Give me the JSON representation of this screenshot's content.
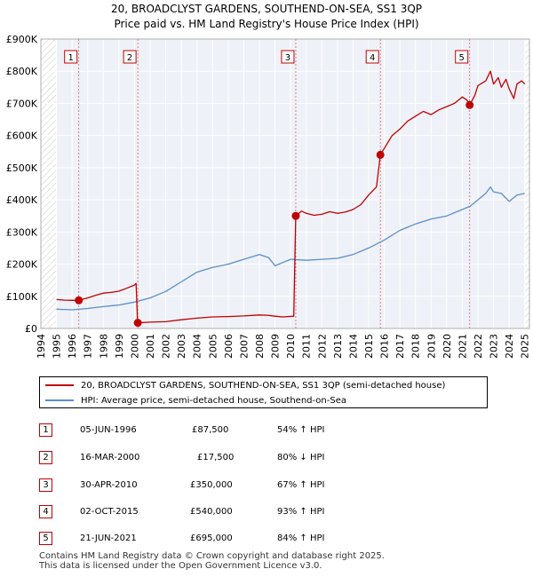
{
  "header": {
    "title_line1": "20, BROADCLYST GARDENS, SOUTHEND-ON-SEA, SS1 3QP",
    "title_line2": "Price paid vs. HM Land Registry's House Price Index (HPI)"
  },
  "chart_data": {
    "type": "line",
    "xlim": [
      1994,
      2025.3
    ],
    "ylim": [
      0,
      900000
    ],
    "x_ticks": [
      1994,
      1995,
      1996,
      1997,
      1998,
      1999,
      2000,
      2001,
      2002,
      2003,
      2004,
      2005,
      2006,
      2007,
      2008,
      2009,
      2010,
      2011,
      2012,
      2013,
      2014,
      2015,
      2016,
      2017,
      2018,
      2019,
      2020,
      2021,
      2022,
      2023,
      2024,
      2025
    ],
    "y_ticks": [
      0,
      100000,
      200000,
      300000,
      400000,
      500000,
      600000,
      700000,
      800000,
      900000
    ],
    "y_tick_labels": [
      "£0",
      "£100K",
      "£200K",
      "£300K",
      "£400K",
      "£500K",
      "£600K",
      "£700K",
      "£800K",
      "£900K"
    ],
    "grid": true,
    "hatched_periods": [
      [
        1994,
        1995
      ],
      [
        2025,
        2025.3
      ]
    ],
    "series": [
      {
        "name": "20, BROADCLYST GARDENS, SOUTHEND-ON-SEA, SS1 3QP (semi-detached house)",
        "color": "#c00000",
        "points": [
          [
            1995,
            90000
          ],
          [
            1995.5,
            88000
          ],
          [
            1996,
            87500
          ],
          [
            1996.43,
            87500
          ],
          [
            1997,
            95000
          ],
          [
            1997.5,
            103000
          ],
          [
            1998,
            110000
          ],
          [
            1998.5,
            112000
          ],
          [
            1999,
            116000
          ],
          [
            1999.5,
            125000
          ],
          [
            2000,
            135000
          ],
          [
            2000.1,
            140000
          ],
          [
            2000.2,
            17500
          ],
          [
            2001,
            19500
          ],
          [
            2002,
            21000
          ],
          [
            2003,
            27000
          ],
          [
            2004,
            32000
          ],
          [
            2005,
            36000
          ],
          [
            2006,
            37000
          ],
          [
            2007,
            39000
          ],
          [
            2008,
            42000
          ],
          [
            2008.5,
            41000
          ],
          [
            2009,
            38000
          ],
          [
            2009.5,
            36000
          ],
          [
            2010.2,
            38000
          ],
          [
            2010.33,
            350000
          ],
          [
            2010.7,
            365000
          ],
          [
            2011,
            358000
          ],
          [
            2011.5,
            352000
          ],
          [
            2012,
            355000
          ],
          [
            2012.5,
            363000
          ],
          [
            2013,
            358000
          ],
          [
            2013.5,
            362000
          ],
          [
            2014,
            370000
          ],
          [
            2014.5,
            385000
          ],
          [
            2015,
            415000
          ],
          [
            2015.5,
            440000
          ],
          [
            2015.75,
            540000
          ],
          [
            2016,
            560000
          ],
          [
            2016.5,
            600000
          ],
          [
            2017,
            620000
          ],
          [
            2017.5,
            645000
          ],
          [
            2018,
            660000
          ],
          [
            2018.5,
            675000
          ],
          [
            2019,
            665000
          ],
          [
            2019.5,
            680000
          ],
          [
            2020,
            690000
          ],
          [
            2020.5,
            700000
          ],
          [
            2021,
            720000
          ],
          [
            2021.3,
            710000
          ],
          [
            2021.47,
            695000
          ],
          [
            2021.8,
            725000
          ],
          [
            2022,
            755000
          ],
          [
            2022.5,
            770000
          ],
          [
            2022.8,
            800000
          ],
          [
            2023,
            760000
          ],
          [
            2023.3,
            780000
          ],
          [
            2023.5,
            750000
          ],
          [
            2023.8,
            775000
          ],
          [
            2024,
            745000
          ],
          [
            2024.3,
            715000
          ],
          [
            2024.5,
            760000
          ],
          [
            2024.8,
            770000
          ],
          [
            2025,
            760000
          ]
        ]
      },
      {
        "name": "HPI: Average price, semi-detached house, Southend-on-Sea",
        "color": "#5b8fc7",
        "points": [
          [
            1995,
            60000
          ],
          [
            1996,
            58000
          ],
          [
            1997,
            62000
          ],
          [
            1998,
            68000
          ],
          [
            1999,
            73000
          ],
          [
            2000,
            82000
          ],
          [
            2001,
            95000
          ],
          [
            2002,
            115000
          ],
          [
            2003,
            145000
          ],
          [
            2004,
            175000
          ],
          [
            2005,
            190000
          ],
          [
            2006,
            200000
          ],
          [
            2007,
            215000
          ],
          [
            2008,
            230000
          ],
          [
            2008.6,
            220000
          ],
          [
            2009,
            195000
          ],
          [
            2009.5,
            205000
          ],
          [
            2010,
            215000
          ],
          [
            2011,
            212000
          ],
          [
            2012,
            215000
          ],
          [
            2013,
            218000
          ],
          [
            2014,
            230000
          ],
          [
            2015,
            250000
          ],
          [
            2016,
            275000
          ],
          [
            2017,
            305000
          ],
          [
            2018,
            325000
          ],
          [
            2019,
            340000
          ],
          [
            2020,
            350000
          ],
          [
            2021,
            370000
          ],
          [
            2021.5,
            380000
          ],
          [
            2022,
            400000
          ],
          [
            2022.5,
            420000
          ],
          [
            2022.8,
            440000
          ],
          [
            2023,
            425000
          ],
          [
            2023.5,
            420000
          ],
          [
            2024,
            395000
          ],
          [
            2024.5,
            415000
          ],
          [
            2025,
            420000
          ]
        ]
      }
    ],
    "sales": [
      {
        "label": "1",
        "x": 1996.43,
        "y": 87500
      },
      {
        "label": "2",
        "x": 2000.21,
        "y": 17500
      },
      {
        "label": "3",
        "x": 2010.33,
        "y": 350000
      },
      {
        "label": "4",
        "x": 2015.75,
        "y": 540000
      },
      {
        "label": "5",
        "x": 2021.47,
        "y": 695000
      }
    ]
  },
  "legend": {
    "property_label": "20, BROADCLYST GARDENS, SOUTHEND-ON-SEA, SS1 3QP (semi-detached house)",
    "hpi_label": "HPI: Average price, semi-detached house, Southend-on-Sea"
  },
  "transactions": [
    {
      "num": "1",
      "date": "05-JUN-1996",
      "price": "£87,500",
      "hpi": "54% ↑ HPI"
    },
    {
      "num": "2",
      "date": "16-MAR-2000",
      "price": "£17,500",
      "hpi": "80% ↓ HPI"
    },
    {
      "num": "3",
      "date": "30-APR-2010",
      "price": "£350,000",
      "hpi": "67% ↑ HPI"
    },
    {
      "num": "4",
      "date": "02-OCT-2015",
      "price": "£540,000",
      "hpi": "93% ↑ HPI"
    },
    {
      "num": "5",
      "date": "21-JUN-2021",
      "price": "£695,000",
      "hpi": "84% ↑ HPI"
    }
  ],
  "footer": {
    "line1": "Contains HM Land Registry data © Crown copyright and database right 2025.",
    "line2": "This data is licensed under the Open Government Licence v3.0."
  }
}
